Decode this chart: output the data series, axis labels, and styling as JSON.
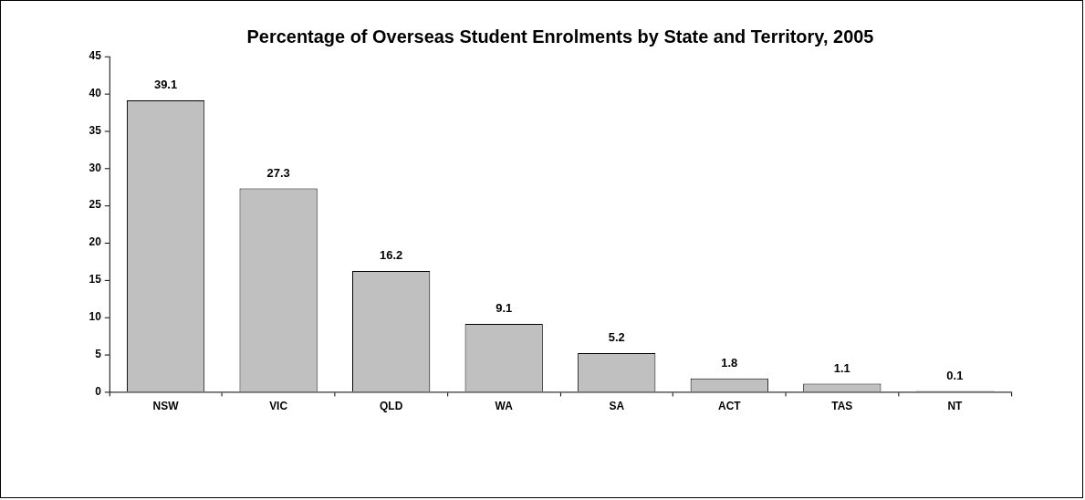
{
  "chart_data": {
    "type": "bar",
    "title": "Percentage of Overseas Student Enrolments by State and Territory, 2005",
    "categories": [
      "NSW",
      "VIC",
      "QLD",
      "WA",
      "SA",
      "ACT",
      "TAS",
      "NT"
    ],
    "values": [
      39.1,
      27.3,
      16.2,
      9.1,
      5.2,
      1.8,
      1.1,
      0.1
    ],
    "color": "#c0c0c0",
    "ylim": [
      0,
      45
    ],
    "yticks": [
      0,
      5,
      10,
      15,
      20,
      25,
      30,
      35,
      40,
      45
    ],
    "data_labels": true
  }
}
